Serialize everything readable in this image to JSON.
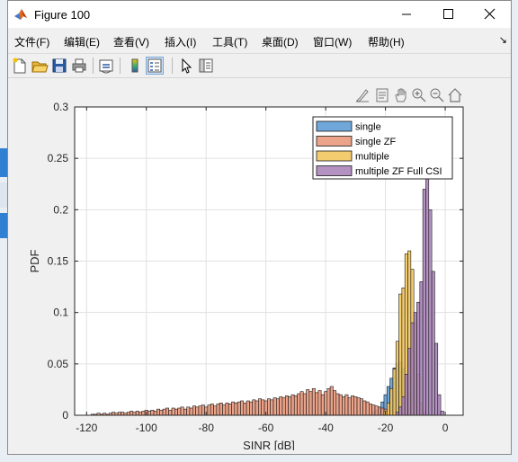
{
  "window": {
    "title": "Figure 100"
  },
  "menu": {
    "items": [
      {
        "label": "文件(F)"
      },
      {
        "label": "编辑(E)"
      },
      {
        "label": "查看(V)"
      },
      {
        "label": "插入(I)"
      },
      {
        "label": "工具(T)"
      },
      {
        "label": "桌面(D)"
      },
      {
        "label": "窗口(W)"
      },
      {
        "label": "帮助(H)"
      }
    ]
  },
  "toolbar": {
    "icons": [
      "new-figure-icon",
      "open-file-icon",
      "save-icon",
      "print-icon",
      "link-icon",
      "colorbar-icon",
      "legend-icon",
      "pointer-icon",
      "property-inspector-icon"
    ]
  },
  "axes_toolbar": {
    "icons": [
      "brush-icon",
      "data-tip-icon",
      "pan-hand-icon",
      "zoom-in-icon",
      "zoom-out-icon",
      "home-icon"
    ]
  },
  "chart_data": {
    "type": "histogram",
    "xlabel": "SINR [dB]",
    "ylabel": "PDF",
    "xlim": [
      -124,
      6
    ],
    "ylim": [
      0,
      0.3
    ],
    "xticks": [
      -120,
      -100,
      -80,
      -60,
      -40,
      -20,
      0
    ],
    "yticks": [
      0,
      0.05,
      0.1,
      0.15,
      0.2,
      0.25,
      0.3
    ],
    "grid": true,
    "legend_position": "top-right",
    "bin_width": 1,
    "series": [
      {
        "name": "single",
        "color": "#5b9bd5",
        "bins": [
          {
            "x": -24,
            "y": 0.003
          },
          {
            "x": -23,
            "y": 0.005
          },
          {
            "x": -22,
            "y": 0.008
          },
          {
            "x": -21,
            "y": 0.013
          },
          {
            "x": -20,
            "y": 0.02
          },
          {
            "x": -19,
            "y": 0.028
          },
          {
            "x": -18,
            "y": 0.036
          },
          {
            "x": -17,
            "y": 0.046
          },
          {
            "x": -16,
            "y": 0.05
          },
          {
            "x": -15,
            "y": 0.052
          },
          {
            "x": -14,
            "y": 0.046
          },
          {
            "x": -13,
            "y": 0.038
          },
          {
            "x": -12,
            "y": 0.028
          },
          {
            "x": -11,
            "y": 0.018
          },
          {
            "x": -10,
            "y": 0.01
          },
          {
            "x": -9,
            "y": 0.005
          },
          {
            "x": -8,
            "y": 0.002
          }
        ]
      },
      {
        "name": "single ZF",
        "color": "#e8967a",
        "bins": [
          {
            "x": -118,
            "y": 0.001
          },
          {
            "x": -117,
            "y": 0.001
          },
          {
            "x": -116,
            "y": 0.002
          },
          {
            "x": -115,
            "y": 0.001
          },
          {
            "x": -114,
            "y": 0.002
          },
          {
            "x": -113,
            "y": 0.001
          },
          {
            "x": -112,
            "y": 0.002
          },
          {
            "x": -111,
            "y": 0.003
          },
          {
            "x": -110,
            "y": 0.002
          },
          {
            "x": -109,
            "y": 0.003
          },
          {
            "x": -108,
            "y": 0.003
          },
          {
            "x": -107,
            "y": 0.002
          },
          {
            "x": -106,
            "y": 0.003
          },
          {
            "x": -105,
            "y": 0.004
          },
          {
            "x": -104,
            "y": 0.003
          },
          {
            "x": -103,
            "y": 0.004
          },
          {
            "x": -102,
            "y": 0.003
          },
          {
            "x": -101,
            "y": 0.004
          },
          {
            "x": -100,
            "y": 0.005
          },
          {
            "x": -99,
            "y": 0.004
          },
          {
            "x": -98,
            "y": 0.005
          },
          {
            "x": -97,
            "y": 0.004
          },
          {
            "x": -96,
            "y": 0.006
          },
          {
            "x": -95,
            "y": 0.005
          },
          {
            "x": -94,
            "y": 0.006
          },
          {
            "x": -93,
            "y": 0.007
          },
          {
            "x": -92,
            "y": 0.005
          },
          {
            "x": -91,
            "y": 0.007
          },
          {
            "x": -90,
            "y": 0.006
          },
          {
            "x": -89,
            "y": 0.007
          },
          {
            "x": -88,
            "y": 0.008
          },
          {
            "x": -87,
            "y": 0.006
          },
          {
            "x": -86,
            "y": 0.008
          },
          {
            "x": -85,
            "y": 0.007
          },
          {
            "x": -84,
            "y": 0.009
          },
          {
            "x": -83,
            "y": 0.008
          },
          {
            "x": -82,
            "y": 0.009
          },
          {
            "x": -81,
            "y": 0.01
          },
          {
            "x": -80,
            "y": 0.008
          },
          {
            "x": -79,
            "y": 0.01
          },
          {
            "x": -78,
            "y": 0.011
          },
          {
            "x": -77,
            "y": 0.009
          },
          {
            "x": -76,
            "y": 0.011
          },
          {
            "x": -75,
            "y": 0.012
          },
          {
            "x": -74,
            "y": 0.01
          },
          {
            "x": -73,
            "y": 0.012
          },
          {
            "x": -72,
            "y": 0.011
          },
          {
            "x": -71,
            "y": 0.013
          },
          {
            "x": -70,
            "y": 0.012
          },
          {
            "x": -69,
            "y": 0.013
          },
          {
            "x": -68,
            "y": 0.014
          },
          {
            "x": -67,
            "y": 0.012
          },
          {
            "x": -66,
            "y": 0.014
          },
          {
            "x": -65,
            "y": 0.013
          },
          {
            "x": -64,
            "y": 0.015
          },
          {
            "x": -63,
            "y": 0.014
          },
          {
            "x": -62,
            "y": 0.016
          },
          {
            "x": -61,
            "y": 0.015
          },
          {
            "x": -60,
            "y": 0.014
          },
          {
            "x": -59,
            "y": 0.016
          },
          {
            "x": -58,
            "y": 0.015
          },
          {
            "x": -57,
            "y": 0.017
          },
          {
            "x": -56,
            "y": 0.016
          },
          {
            "x": -55,
            "y": 0.018
          },
          {
            "x": -54,
            "y": 0.017
          },
          {
            "x": -53,
            "y": 0.019
          },
          {
            "x": -52,
            "y": 0.018
          },
          {
            "x": -51,
            "y": 0.02
          },
          {
            "x": -50,
            "y": 0.019
          },
          {
            "x": -49,
            "y": 0.021
          },
          {
            "x": -48,
            "y": 0.023
          },
          {
            "x": -47,
            "y": 0.021
          },
          {
            "x": -46,
            "y": 0.025
          },
          {
            "x": -45,
            "y": 0.023
          },
          {
            "x": -44,
            "y": 0.026
          },
          {
            "x": -43,
            "y": 0.022
          },
          {
            "x": -42,
            "y": 0.024
          },
          {
            "x": -41,
            "y": 0.02
          },
          {
            "x": -40,
            "y": 0.023
          },
          {
            "x": -39,
            "y": 0.026
          },
          {
            "x": -38,
            "y": 0.028
          },
          {
            "x": -37,
            "y": 0.024
          },
          {
            "x": -36,
            "y": 0.021
          },
          {
            "x": -35,
            "y": 0.02
          },
          {
            "x": -34,
            "y": 0.018
          },
          {
            "x": -33,
            "y": 0.02
          },
          {
            "x": -32,
            "y": 0.017
          },
          {
            "x": -31,
            "y": 0.019
          },
          {
            "x": -30,
            "y": 0.018
          },
          {
            "x": -29,
            "y": 0.017
          },
          {
            "x": -28,
            "y": 0.016
          },
          {
            "x": -27,
            "y": 0.014
          },
          {
            "x": -26,
            "y": 0.013
          },
          {
            "x": -25,
            "y": 0.011
          },
          {
            "x": -24,
            "y": 0.01
          },
          {
            "x": -23,
            "y": 0.009
          },
          {
            "x": -22,
            "y": 0.008
          },
          {
            "x": -21,
            "y": 0.007
          },
          {
            "x": -20,
            "y": 0.006
          },
          {
            "x": -19,
            "y": 0.005
          },
          {
            "x": -18,
            "y": 0.004
          },
          {
            "x": -17,
            "y": 0.003
          },
          {
            "x": -16,
            "y": 0.002
          },
          {
            "x": -15,
            "y": 0.002
          },
          {
            "x": -14,
            "y": 0.001
          }
        ]
      },
      {
        "name": "multiple",
        "color": "#f2c55c",
        "bins": [
          {
            "x": -20,
            "y": 0.004
          },
          {
            "x": -19,
            "y": 0.012
          },
          {
            "x": -18,
            "y": 0.026
          },
          {
            "x": -17,
            "y": 0.045
          },
          {
            "x": -16,
            "y": 0.072
          },
          {
            "x": -15,
            "y": 0.118
          },
          {
            "x": -14,
            "y": 0.124
          },
          {
            "x": -13,
            "y": 0.157
          },
          {
            "x": -12,
            "y": 0.16
          },
          {
            "x": -11,
            "y": 0.142
          },
          {
            "x": -10,
            "y": 0.09
          },
          {
            "x": -9,
            "y": 0.04
          },
          {
            "x": -8,
            "y": 0.012
          },
          {
            "x": -7,
            "y": 0.003
          }
        ]
      },
      {
        "name": "multiple ZF Full CSI",
        "color": "#a983b8",
        "bins": [
          {
            "x": -16,
            "y": 0.003
          },
          {
            "x": -15,
            "y": 0.008
          },
          {
            "x": -14,
            "y": 0.018
          },
          {
            "x": -13,
            "y": 0.04
          },
          {
            "x": -12,
            "y": 0.065
          },
          {
            "x": -11,
            "y": 0.09
          },
          {
            "x": -10,
            "y": 0.1
          },
          {
            "x": -9,
            "y": 0.11
          },
          {
            "x": -8,
            "y": 0.13
          },
          {
            "x": -7,
            "y": 0.22
          },
          {
            "x": -6,
            "y": 0.24
          },
          {
            "x": -5,
            "y": 0.2
          },
          {
            "x": -4,
            "y": 0.14
          },
          {
            "x": -3,
            "y": 0.07
          },
          {
            "x": -2,
            "y": 0.02
          },
          {
            "x": -1,
            "y": 0.004
          }
        ]
      }
    ]
  }
}
